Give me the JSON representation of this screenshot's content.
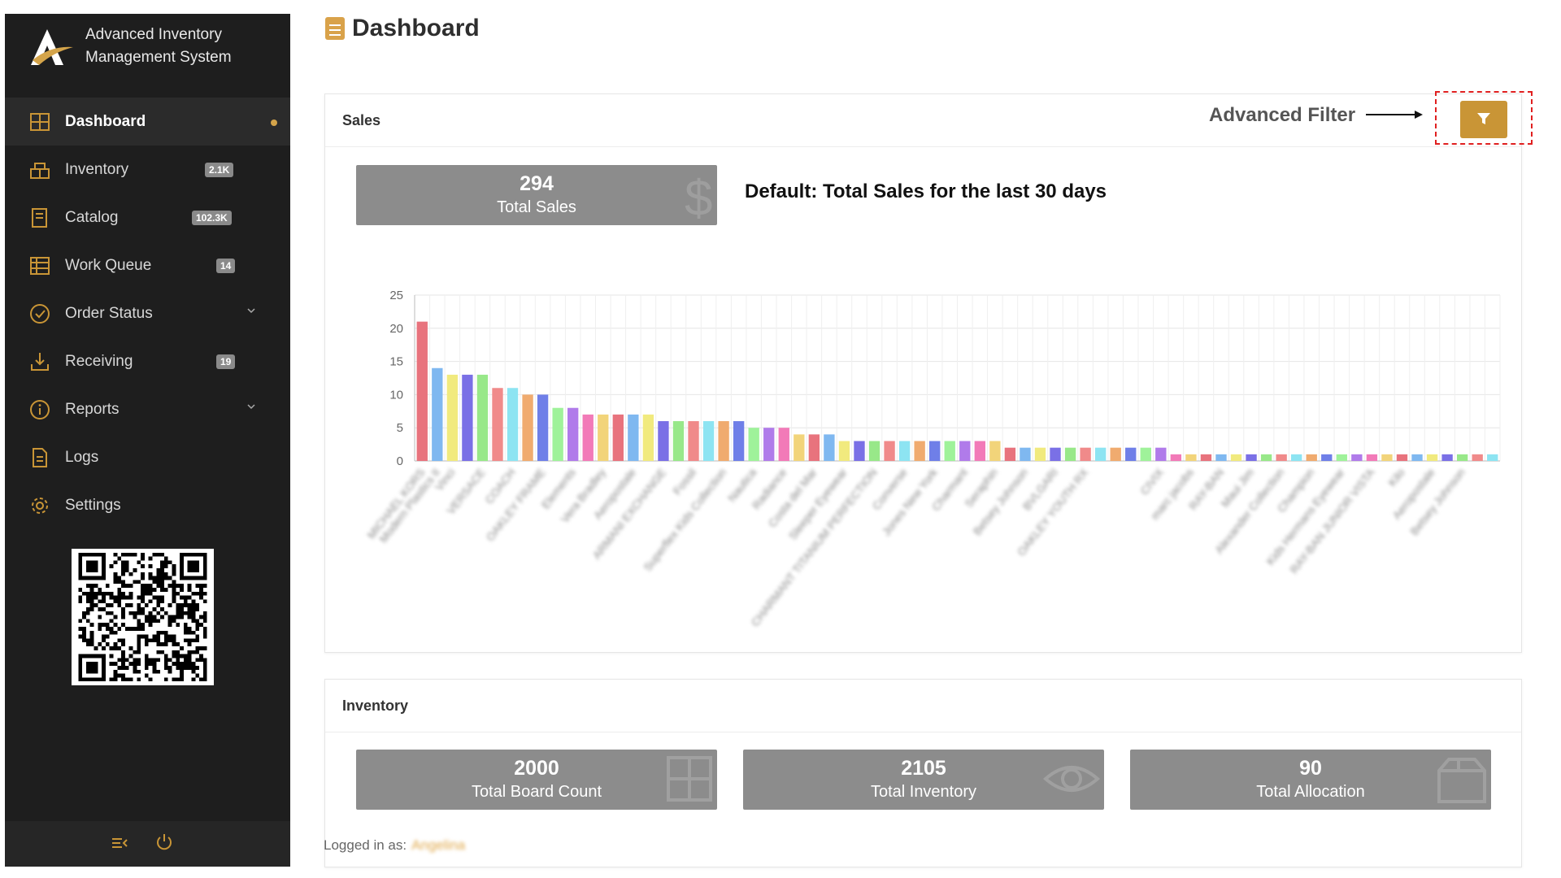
{
  "app": {
    "name_line1": "Advanced Inventory",
    "name_line2": "Management System"
  },
  "sidebar": {
    "items": [
      {
        "label": "Dashboard",
        "icon": "dashboard-icon",
        "active": true
      },
      {
        "label": "Inventory",
        "icon": "inventory-icon",
        "badge": "2.1K"
      },
      {
        "label": "Catalog",
        "icon": "catalog-icon",
        "badge": "102.3K"
      },
      {
        "label": "Work Queue",
        "icon": "work-queue-icon",
        "badge": "14"
      },
      {
        "label": "Order Status",
        "icon": "order-status-icon",
        "has_submenu": true
      },
      {
        "label": "Receiving",
        "icon": "receiving-icon",
        "badge": "19"
      },
      {
        "label": "Reports",
        "icon": "reports-icon",
        "has_submenu": true
      },
      {
        "label": "Logs",
        "icon": "logs-icon"
      },
      {
        "label": "Settings",
        "icon": "settings-icon"
      }
    ],
    "footer_icons": [
      "collapse-menu-icon",
      "power-icon"
    ]
  },
  "page": {
    "title": "Dashboard"
  },
  "sales": {
    "title": "Sales",
    "annotation": "Advanced Filter",
    "default_note": "Default: Total Sales for the last 30 days",
    "stat": {
      "value": "294",
      "label": "Total Sales",
      "icon": "dollar-icon"
    }
  },
  "inventory": {
    "title": "Inventory",
    "stats": [
      {
        "value": "2000",
        "label": "Total Board Count",
        "icon": "grid-icon"
      },
      {
        "value": "2105",
        "label": "Total Inventory",
        "icon": "eye-icon"
      },
      {
        "value": "90",
        "label": "Total Allocation",
        "icon": "box-icon"
      }
    ]
  },
  "footer": {
    "logged_in_label": "Logged in as:",
    "user": "Angelina"
  },
  "colors": {
    "accent": "#c99536",
    "sidebar_bg": "#1e1e1e",
    "stat_bg": "#8c8c8c"
  },
  "chart_data": {
    "type": "bar",
    "ylim": [
      0,
      25
    ],
    "yticks": [
      0,
      5,
      10,
      15,
      20,
      25
    ],
    "grid": true,
    "palette": [
      "#e8737d",
      "#7fb8f0",
      "#f1ea7e",
      "#7a70e6",
      "#98e889",
      "#f08a8a",
      "#8de4f2",
      "#f0ab6f",
      "#6f7fe8",
      "#9ff29a",
      "#b07bea",
      "#f27ab8",
      "#f2d47a"
    ],
    "categories": [
      "MICHAEL KORS",
      "Modern Plastics II",
      "Vinci",
      "",
      "VERSACE",
      "",
      "COACH",
      "",
      "OAKLEY FRAME",
      "",
      "Elements",
      "",
      "Vera Bradley",
      "",
      "Aeropostale",
      "",
      "ARMANI EXCHANGE",
      "",
      "Fossil",
      "",
      "Superflex Kids Collection",
      "",
      "Nautica",
      "",
      "Radiance",
      "",
      "Costa del Mar",
      "",
      "Sleeper Eyewear",
      "",
      "CHARMANT TITANIUM PERFECTION",
      "",
      "Converse",
      "",
      "Jones New York",
      "",
      "Charmant",
      "",
      "Seraphin",
      "",
      "Betsey Johnson",
      "",
      "BVLGARI",
      "",
      "OAKLEY YOUTH RX",
      "",
      "",
      "",
      "",
      "CIVIX",
      "",
      "marc jacobs",
      "",
      "RAY-BAN",
      "",
      "Maui Jim",
      "",
      "Alexander Collection",
      "",
      "Champion",
      "",
      "Kids Hermans Eyewear",
      "",
      "RAY-BAN JUNIOR VISTA",
      "",
      "Kilo",
      "",
      "Aeropostale",
      "",
      "Betsey Johnson",
      "",
      ""
    ],
    "values": [
      21,
      14,
      13,
      13,
      13,
      11,
      11,
      10,
      10,
      8,
      8,
      7,
      7,
      7,
      7,
      7,
      6,
      6,
      6,
      6,
      6,
      6,
      5,
      5,
      5,
      4,
      4,
      4,
      3,
      3,
      3,
      3,
      3,
      3,
      3,
      3,
      3,
      3,
      3,
      2,
      2,
      2,
      2,
      2,
      2,
      2,
      2,
      2,
      2,
      2,
      1,
      1,
      1,
      1,
      1,
      1,
      1,
      1,
      1,
      1,
      1,
      1,
      1,
      1,
      1,
      1,
      1,
      1,
      1,
      1,
      1,
      1
    ]
  }
}
